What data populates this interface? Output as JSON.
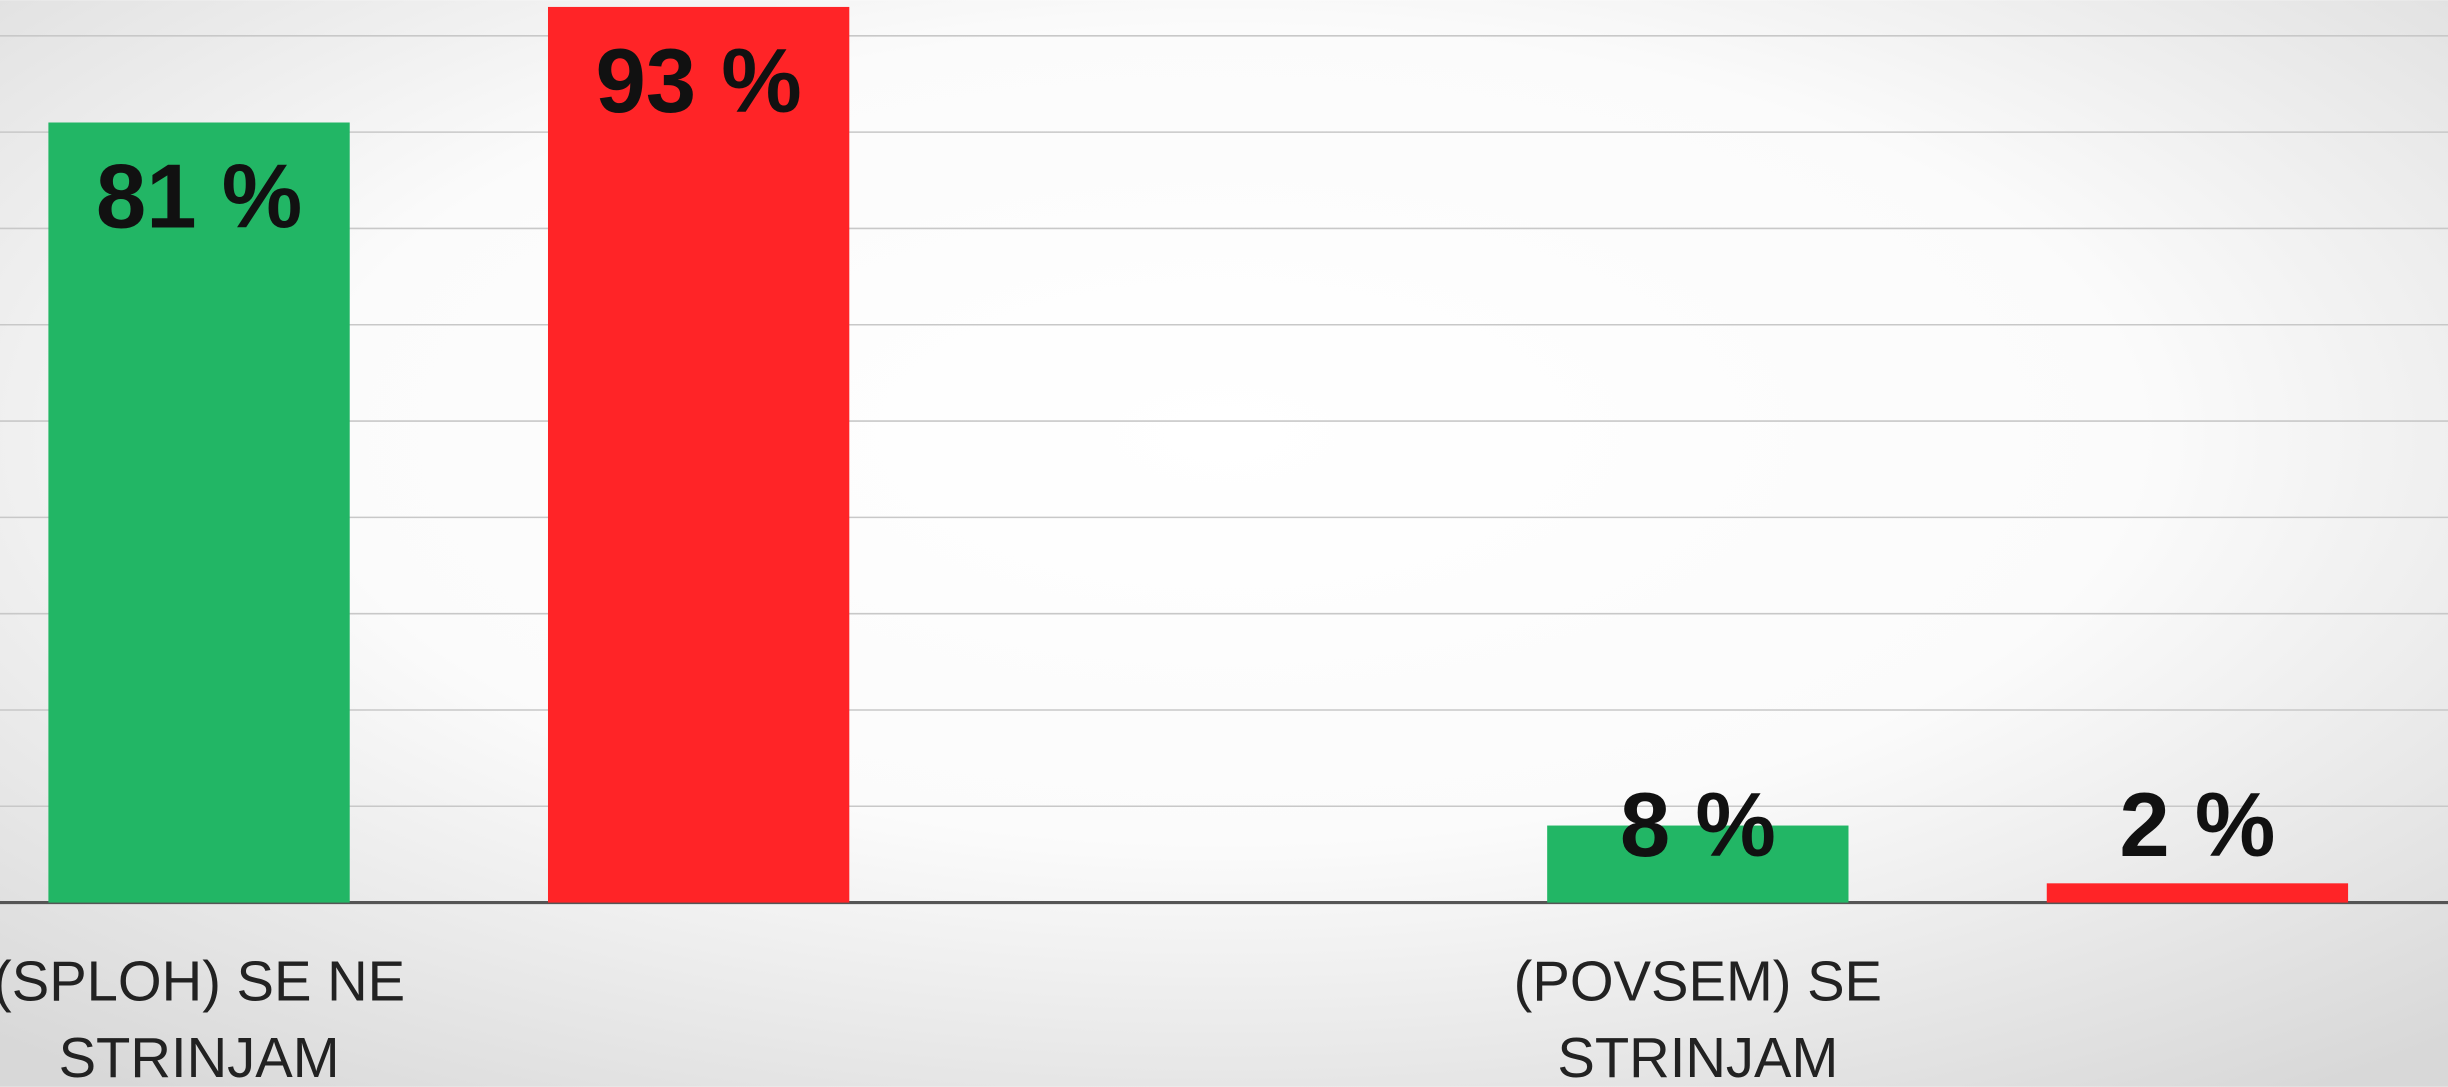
{
  "chart_data": {
    "type": "bar",
    "categories": [
      "(SPLOH) SE NE STRINJAM",
      "(POVSEM) SE STRINJAM"
    ],
    "series": [
      {
        "color": "#22b665",
        "values": [
          81,
          8
        ],
        "value_labels": [
          "81 %",
          "8 %"
        ]
      },
      {
        "color": "#ff2427",
        "values": [
          93,
          2
        ],
        "value_labels": [
          "93 %",
          "2 %"
        ]
      }
    ],
    "ylim": [
      0,
      93.7
    ],
    "yticks": [
      0,
      10,
      20,
      30,
      40,
      50,
      60,
      70,
      80,
      90
    ],
    "grid": true
  }
}
